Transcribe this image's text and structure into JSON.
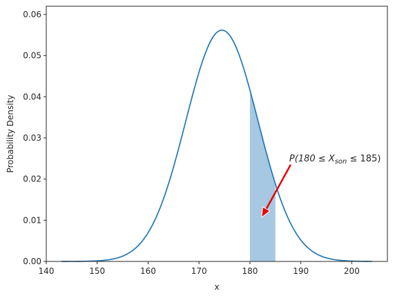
{
  "chart_data": {
    "type": "line",
    "title": "",
    "xlabel": "x",
    "ylabel": "Probability Density",
    "xlim": [
      140,
      207
    ],
    "ylim": [
      0,
      0.062
    ],
    "grid": false,
    "distribution": {
      "family": "normal",
      "mean": 174.5,
      "std": 7.1,
      "x_start": 143,
      "x_end": 204
    },
    "shaded_interval": [
      180,
      185
    ],
    "xticks": [
      140,
      150,
      160,
      170,
      180,
      190,
      200
    ],
    "xtick_labels": [
      "140",
      "150",
      "160",
      "170",
      "180",
      "190",
      "200"
    ],
    "yticks": [
      0,
      0.01,
      0.02,
      0.03,
      0.04,
      0.05,
      0.06
    ],
    "ytick_labels": [
      "0.00",
      "0.01",
      "0.02",
      "0.03",
      "0.04",
      "0.05",
      "0.06"
    ],
    "annotation": {
      "prefix": "P(180 ≤ X",
      "subscript": "son",
      "suffix": " ≤ 185)",
      "text_x": 188,
      "text_y": 0.025,
      "arrow_from": [
        188,
        0.0235
      ],
      "arrow_to": [
        182.3,
        0.0107
      ]
    },
    "colors": {
      "line": "#1f77b4",
      "fill": "#a6c8e2",
      "arrow": "#e60000",
      "axes": "#262626"
    }
  }
}
